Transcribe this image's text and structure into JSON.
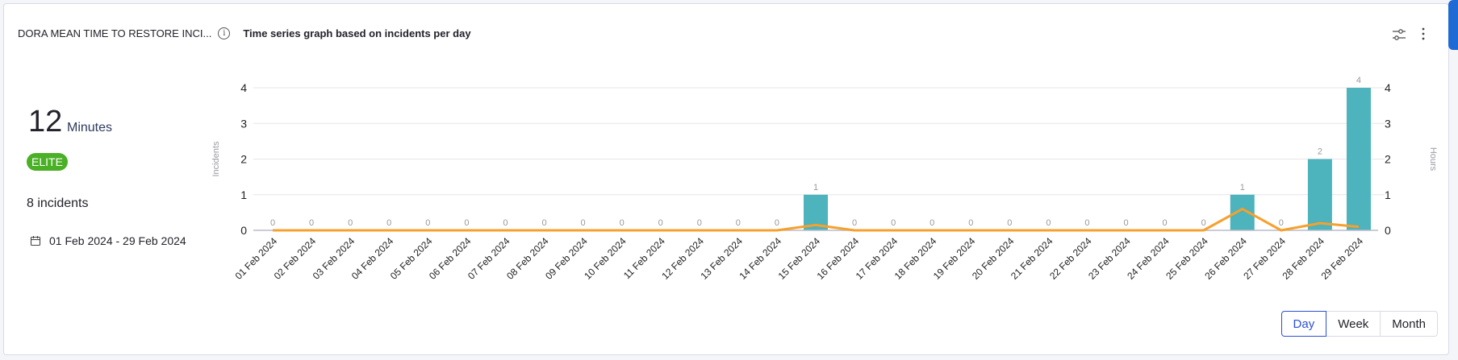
{
  "widget": {
    "title": "DORA MEAN TIME TO RESTORE INCI...",
    "info_icon": "info-icon",
    "chart_title": "Time series graph based on incidents per day",
    "settings_icon": "sliders-icon",
    "menu_icon": "kebab-menu-icon"
  },
  "summary": {
    "value": "12",
    "unit": "Minutes",
    "badge": "ELITE",
    "badge_color": "#4ab025",
    "incidents": "8 incidents",
    "date_range": "01 Feb 2024 - 29 Feb 2024",
    "date_icon": "calendar-icon"
  },
  "granularity": {
    "options": [
      "Day",
      "Week",
      "Month"
    ],
    "selected": "Day"
  },
  "chart_data": {
    "type": "bar",
    "categories": [
      "01 Feb 2024",
      "02 Feb 2024",
      "03 Feb 2024",
      "04 Feb 2024",
      "05 Feb 2024",
      "06 Feb 2024",
      "07 Feb 2024",
      "08 Feb 2024",
      "09 Feb 2024",
      "10 Feb 2024",
      "11 Feb 2024",
      "12 Feb 2024",
      "13 Feb 2024",
      "14 Feb 2024",
      "15 Feb 2024",
      "16 Feb 2024",
      "17 Feb 2024",
      "18 Feb 2024",
      "19 Feb 2024",
      "20 Feb 2024",
      "21 Feb 2024",
      "22 Feb 2024",
      "23 Feb 2024",
      "24 Feb 2024",
      "25 Feb 2024",
      "26 Feb 2024",
      "27 Feb 2024",
      "28 Feb 2024",
      "29 Feb 2024"
    ],
    "series": [
      {
        "type": "bar",
        "axis": "left",
        "color": "#4db3bc",
        "values": [
          0,
          0,
          0,
          0,
          0,
          0,
          0,
          0,
          0,
          0,
          0,
          0,
          0,
          0,
          1,
          0,
          0,
          0,
          0,
          0,
          0,
          0,
          0,
          0,
          0,
          1,
          0,
          2,
          4
        ]
      },
      {
        "type": "line",
        "axis": "right",
        "color": "#f7a02c",
        "values": [
          0,
          0,
          0,
          0,
          0,
          0,
          0,
          0,
          0,
          0,
          0,
          0,
          0,
          0,
          0.15,
          0,
          0,
          0,
          0,
          0,
          0,
          0,
          0,
          0,
          0,
          0.6,
          0,
          0.2,
          0.1
        ]
      }
    ],
    "ylabel": "Incidents",
    "y2label": "Hours",
    "ylim": [
      0,
      4
    ],
    "y2lim": [
      0,
      4
    ],
    "yticks": [
      "0",
      "1",
      "2",
      "3",
      "4"
    ],
    "y2ticks": [
      "0",
      "1",
      "2",
      "3",
      "4"
    ],
    "data_labels": true,
    "grid": true,
    "legend": "none"
  }
}
